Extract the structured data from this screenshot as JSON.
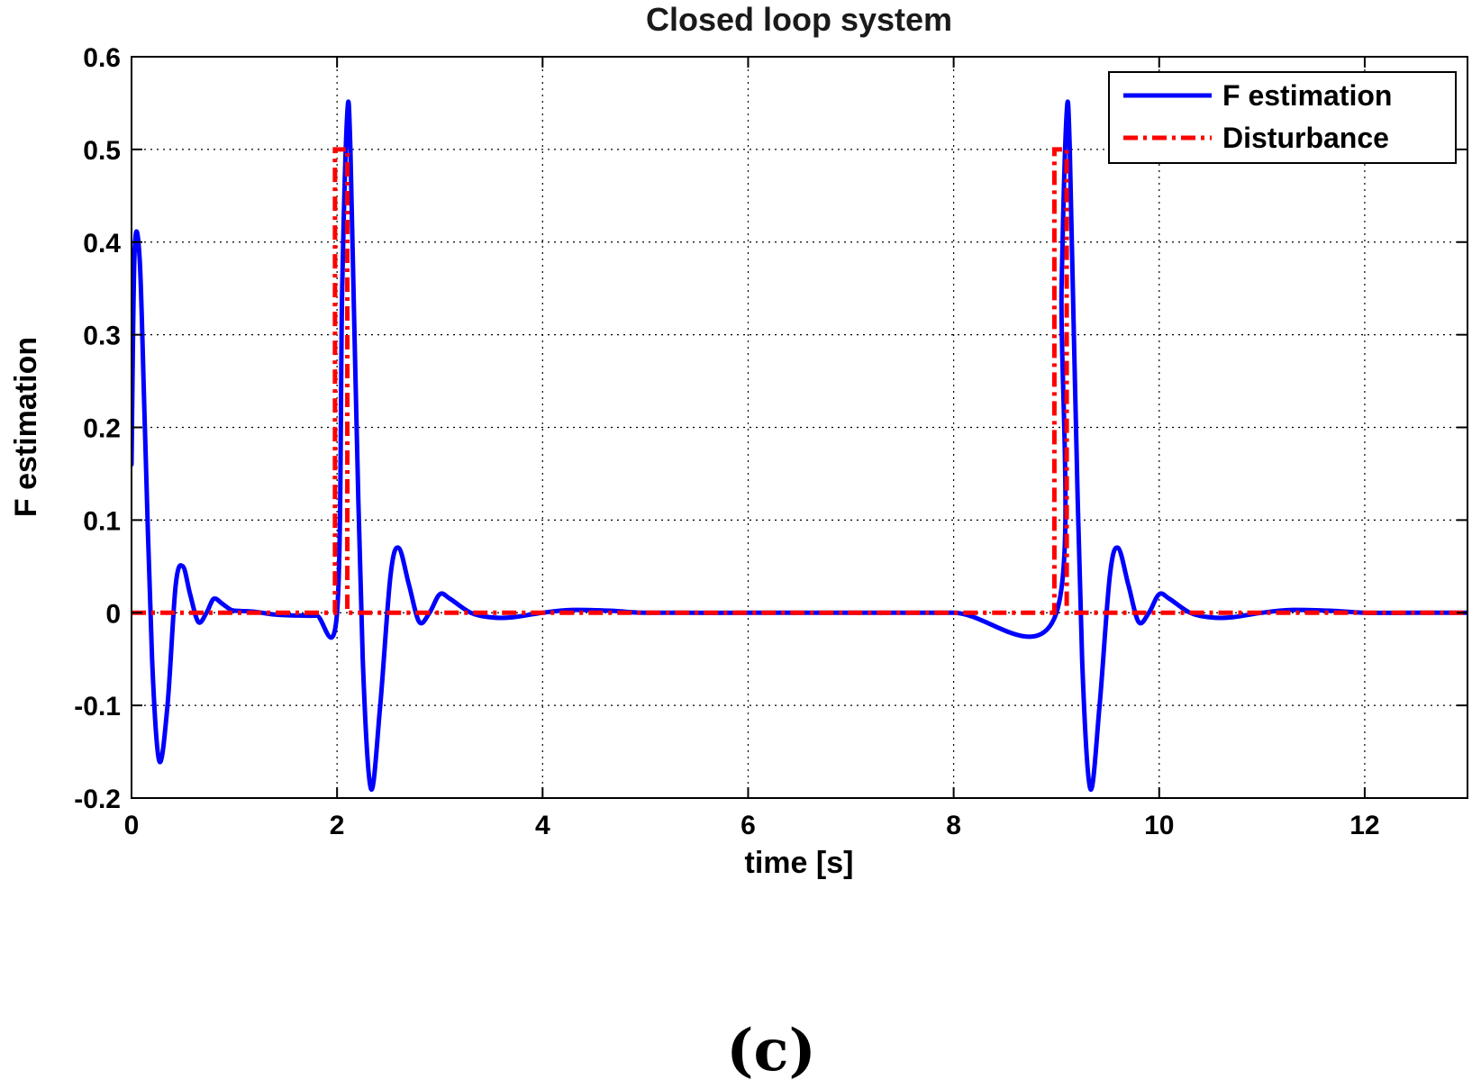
{
  "caption": "(c)",
  "chart_data": {
    "type": "line",
    "title": "Closed loop system",
    "xlabel": "time [s]",
    "ylabel": "F estimation",
    "xlim": [
      0,
      13
    ],
    "ylim": [
      -0.2,
      0.6
    ],
    "grid": true,
    "legend_position": "top-right",
    "x_ticks": [
      0,
      2,
      4,
      6,
      8,
      10,
      12
    ],
    "x_tick_labels": [
      "0",
      "2",
      "4",
      "6",
      "8",
      "10",
      "12"
    ],
    "y_ticks": [
      -0.2,
      -0.1,
      0,
      0.1,
      0.2,
      0.3,
      0.4,
      0.5,
      0.6
    ],
    "y_tick_labels": [
      "-0.2",
      "-0.1",
      "0",
      "0.1",
      "0.2",
      "0.3",
      "0.4",
      "0.5",
      "0.6"
    ],
    "series": [
      {
        "name": "F estimation",
        "color": "#0000ff",
        "style": "solid",
        "x": [
          0,
          0.03,
          0.08,
          0.13,
          0.2,
          0.27,
          0.35,
          0.43,
          0.5,
          0.57,
          0.65,
          0.73,
          0.8,
          0.88,
          0.97,
          1.05,
          1.2,
          1.4,
          1.6,
          1.8,
          2.0,
          2.05,
          2.1,
          2.13,
          2.18,
          2.25,
          2.33,
          2.42,
          2.52,
          2.6,
          2.7,
          2.8,
          2.9,
          3.0,
          3.1,
          3.3,
          3.5,
          3.7,
          4.0,
          4.3,
          4.7,
          5.0,
          6.0,
          7.0,
          8.0,
          9.0,
          9.05,
          9.1,
          9.13,
          9.18,
          9.25,
          9.33,
          9.42,
          9.52,
          9.6,
          9.7,
          9.8,
          9.9,
          10.0,
          10.1,
          10.3,
          10.5,
          10.7,
          11.0,
          11.3,
          11.7,
          12.0,
          12.5,
          13.0
        ],
        "y": [
          0.16,
          0.39,
          0.38,
          0.2,
          -0.05,
          -0.16,
          -0.1,
          0.03,
          0.05,
          0.02,
          -0.01,
          0.0,
          0.015,
          0.01,
          0.003,
          0.002,
          0.001,
          -0.002,
          -0.003,
          -0.003,
          0.0,
          0.35,
          0.54,
          0.5,
          0.25,
          -0.05,
          -0.19,
          -0.1,
          0.04,
          0.07,
          0.03,
          -0.01,
          0.0,
          0.02,
          0.015,
          0.0,
          -0.005,
          -0.005,
          0.0,
          0.003,
          0.002,
          0.0,
          0.0,
          0.0,
          0.0,
          0.0,
          0.35,
          0.54,
          0.5,
          0.25,
          -0.05,
          -0.19,
          -0.1,
          0.04,
          0.07,
          0.03,
          -0.01,
          0.0,
          0.02,
          0.015,
          0.0,
          -0.005,
          -0.005,
          0.0,
          0.003,
          0.002,
          0.0,
          0.0,
          0.0
        ]
      },
      {
        "name": "Disturbance",
        "color": "#ff0000",
        "style": "dash-dot",
        "x": [
          0,
          1.98,
          1.98,
          2.1,
          2.1,
          8.98,
          8.98,
          9.1,
          9.1,
          13.0
        ],
        "y": [
          0,
          0,
          0.5,
          0.5,
          0,
          0,
          0.5,
          0.5,
          0,
          0
        ]
      }
    ]
  }
}
